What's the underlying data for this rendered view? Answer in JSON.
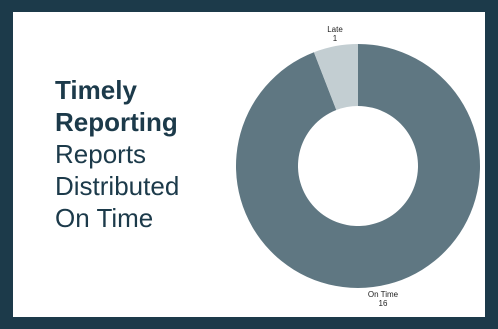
{
  "heading": {
    "title_lines": [
      "Timely",
      "Reporting"
    ],
    "subtitle_lines": [
      "Reports",
      "Distributed",
      "On Time"
    ]
  },
  "colors": {
    "frame": "#1c3a4a",
    "text": "#1c3a4a",
    "on_time": "#5f7782",
    "late": "#c3ced2"
  },
  "chart_data": {
    "type": "pie",
    "variant": "donut",
    "title": "",
    "slices": [
      {
        "label": "On Time",
        "value": 16,
        "color": "#5f7782"
      },
      {
        "label": "Late",
        "value": 1,
        "color": "#c3ced2"
      }
    ]
  }
}
